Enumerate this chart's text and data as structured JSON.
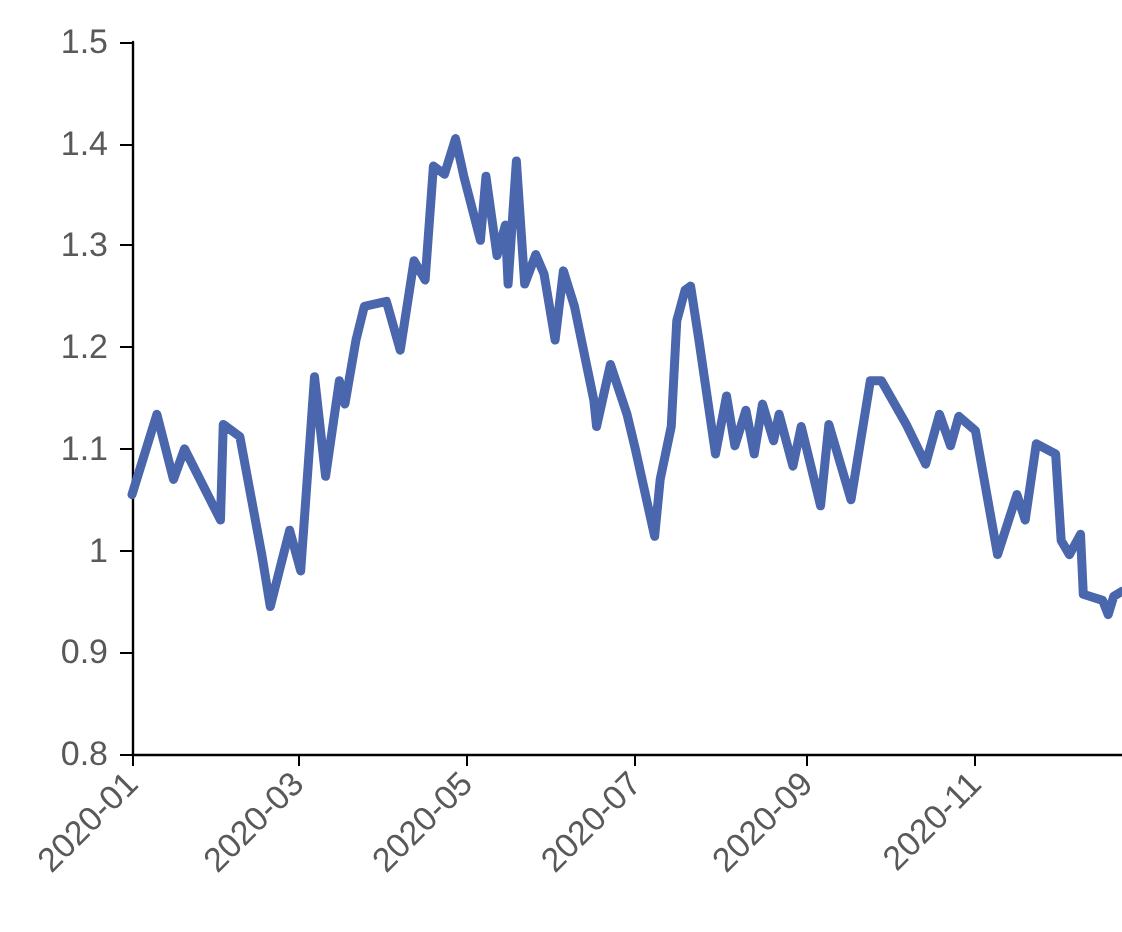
{
  "chart_data": {
    "type": "line",
    "line_style": "solid",
    "marker": "none",
    "grid": false,
    "xlim": [
      "2020-01-01",
      "2020-12-24"
    ],
    "xticks": [
      "2020-01",
      "2020-03",
      "2020-05",
      "2020-07",
      "2020-09",
      "2020-11"
    ],
    "ylim": [
      0.8,
      1.5
    ],
    "yticks": [
      0.8,
      0.9,
      1,
      1.1,
      1.2,
      1.3,
      1.4,
      1.5
    ],
    "x": [
      "2020-01-01",
      "2020-01-10",
      "2020-01-16",
      "2020-01-20",
      "2020-02-02",
      "2020-02-03",
      "2020-02-09",
      "2020-02-17",
      "2020-02-20",
      "2020-02-23",
      "2020-02-27",
      "2020-03-02",
      "2020-03-07",
      "2020-03-11",
      "2020-03-16",
      "2020-03-18",
      "2020-03-22",
      "2020-03-25",
      "2020-04-02",
      "2020-04-07",
      "2020-04-12",
      "2020-04-16",
      "2020-04-19",
      "2020-04-23",
      "2020-04-27",
      "2020-04-30",
      "2020-05-06",
      "2020-05-08",
      "2020-05-12",
      "2020-05-15",
      "2020-05-16",
      "2020-05-19",
      "2020-05-22",
      "2020-05-26",
      "2020-05-29",
      "2020-06-02",
      "2020-06-05",
      "2020-06-09",
      "2020-06-16",
      "2020-06-17",
      "2020-06-22",
      "2020-06-28",
      "2020-07-01",
      "2020-07-08",
      "2020-07-10",
      "2020-07-14",
      "2020-07-16",
      "2020-07-19",
      "2020-07-21",
      "2020-07-24",
      "2020-07-30",
      "2020-08-03",
      "2020-08-06",
      "2020-08-10",
      "2020-08-13",
      "2020-08-16",
      "2020-08-20",
      "2020-08-22",
      "2020-08-27",
      "2020-08-30",
      "2020-09-06",
      "2020-09-09",
      "2020-09-17",
      "2020-09-24",
      "2020-09-28",
      "2020-10-07",
      "2020-10-14",
      "2020-10-19",
      "2020-10-23",
      "2020-10-26",
      "2020-11-01",
      "2020-11-09",
      "2020-11-16",
      "2020-11-19",
      "2020-11-23",
      "2020-11-30",
      "2020-12-02",
      "2020-12-05",
      "2020-12-09",
      "2020-12-10",
      "2020-12-17",
      "2020-12-19",
      "2020-12-21",
      "2020-12-24"
    ],
    "series": [
      {
        "color": "#4a66ac",
        "values": [
          1.055,
          1.134,
          1.07,
          1.1,
          1.03,
          1.124,
          1.112,
          0.995,
          0.945,
          0.977,
          1.02,
          0.98,
          1.171,
          1.073,
          1.167,
          1.144,
          1.207,
          1.24,
          1.245,
          1.197,
          1.285,
          1.266,
          1.378,
          1.37,
          1.405,
          1.368,
          1.305,
          1.368,
          1.29,
          1.32,
          1.262,
          1.383,
          1.262,
          1.291,
          1.272,
          1.207,
          1.275,
          1.24,
          1.148,
          1.122,
          1.183,
          1.134,
          1.1,
          1.014,
          1.07,
          1.122,
          1.226,
          1.256,
          1.26,
          1.207,
          1.095,
          1.152,
          1.103,
          1.138,
          1.095,
          1.144,
          1.108,
          1.134,
          1.083,
          1.122,
          1.044,
          1.124,
          1.05,
          1.167,
          1.167,
          1.124,
          1.085,
          1.134,
          1.103,
          1.132,
          1.118,
          0.996,
          1.055,
          1.03,
          1.105,
          1.095,
          1.01,
          0.996,
          1.016,
          0.957,
          0.951,
          0.937,
          0.955,
          0.96
        ]
      }
    ]
  }
}
